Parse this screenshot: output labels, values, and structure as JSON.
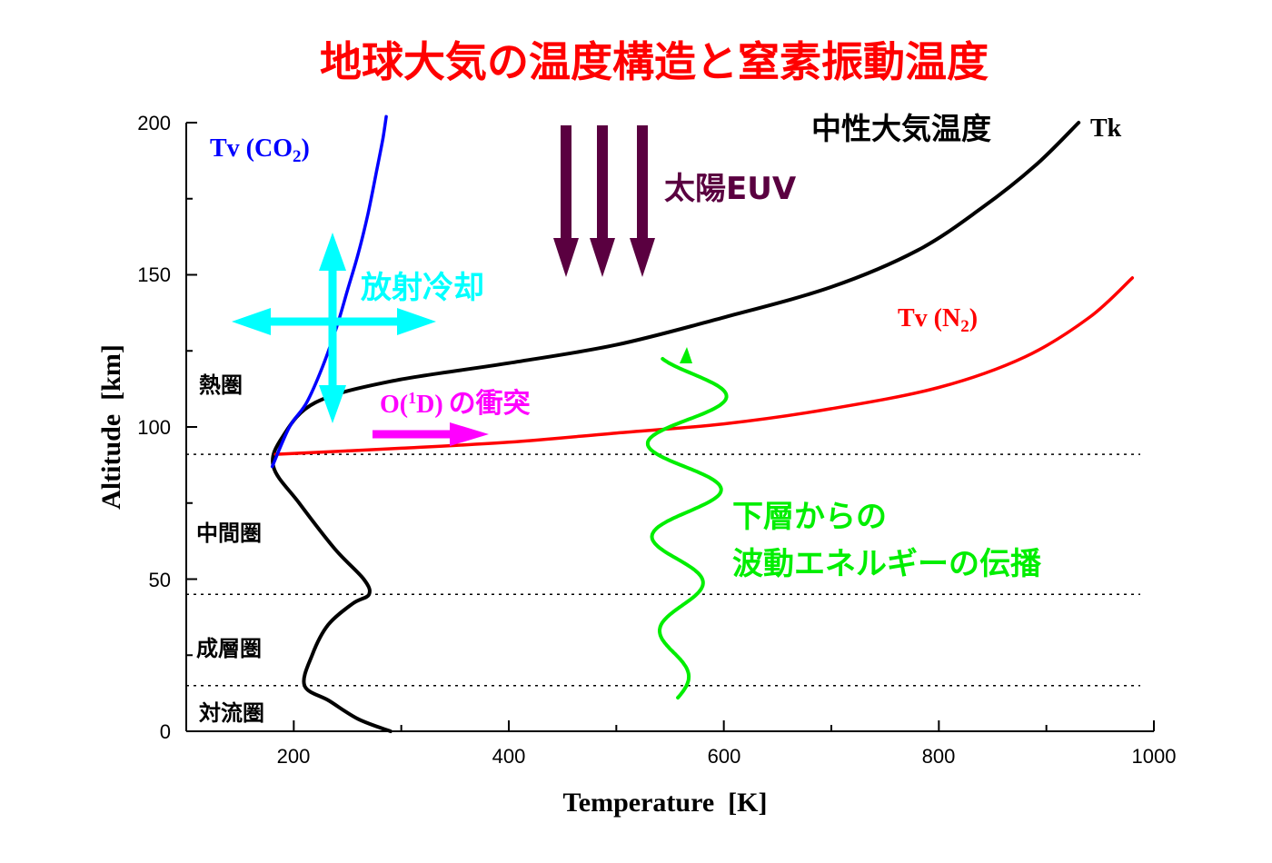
{
  "chart_data": {
    "type": "line",
    "title": "地球大気の温度構造と窒素振動温度",
    "xlabel": "Temperature  [K]",
    "ylabel": "Altitude  [km]",
    "xlim": [
      100,
      1000
    ],
    "ylim": [
      0,
      200
    ],
    "x_ticks": [
      "200",
      "400",
      "600",
      "800",
      "1000"
    ],
    "y_ticks": [
      "0",
      "50",
      "100",
      "150",
      "200"
    ],
    "series": [
      {
        "name": "Tk",
        "color": "#000000",
        "points": [
          [
            290,
            0
          ],
          [
            260,
            4
          ],
          [
            233,
            10
          ],
          [
            210,
            15
          ],
          [
            217,
            25
          ],
          [
            232,
            35
          ],
          [
            255,
            42
          ],
          [
            270,
            45
          ],
          [
            265,
            50
          ],
          [
            238,
            60
          ],
          [
            205,
            75
          ],
          [
            181,
            87
          ],
          [
            190,
            97
          ],
          [
            220,
            108
          ],
          [
            290,
            115
          ],
          [
            400,
            121
          ],
          [
            500,
            127
          ],
          [
            600,
            136
          ],
          [
            700,
            146
          ],
          [
            780,
            158
          ],
          [
            840,
            172
          ],
          [
            890,
            186
          ],
          [
            930,
            200
          ]
        ]
      },
      {
        "name": "Tv (N2)",
        "color": "#ff0000",
        "points": [
          [
            183,
            91
          ],
          [
            300,
            93
          ],
          [
            400,
            95
          ],
          [
            500,
            98
          ],
          [
            600,
            101
          ],
          [
            700,
            106
          ],
          [
            800,
            113
          ],
          [
            880,
            123
          ],
          [
            940,
            136
          ],
          [
            980,
            149
          ]
        ]
      },
      {
        "name": "Tv (CO2)",
        "color": "#0000ff",
        "points": [
          [
            180,
            87
          ],
          [
            196,
            100
          ],
          [
            212,
            108
          ],
          [
            227,
            120
          ],
          [
            240,
            133
          ],
          [
            250,
            145
          ],
          [
            260,
            157
          ],
          [
            269,
            170
          ],
          [
            277,
            184
          ],
          [
            283,
            195
          ],
          [
            286,
            202
          ]
        ]
      }
    ],
    "series_labels": {
      "tk": "Tk",
      "tv_co2": "Tv (CO",
      "tv_co2_sub": "2",
      "tv_co2_close": ")",
      "tv_n2": "Tv (N",
      "tv_n2_sub": "2",
      "tv_n2_close": ")"
    },
    "dotted_lines_km": [
      91,
      45,
      15
    ],
    "region_labels": [
      "熱圏",
      "中間圏",
      "成層圏",
      "対流圏"
    ],
    "annotations": {
      "neutral_temp": "中性大気温度",
      "solar_euv": "太陽EUV",
      "radiative_cooling": "放射冷却",
      "collision_prefix": "O(",
      "collision_sup": "1",
      "collision_mid": "D)",
      "collision_suffix": "の衝突",
      "wave_line1": "下層からの",
      "wave_line2": "波動エネルギーの伝播"
    },
    "colors": {
      "title": "#ff0000",
      "tk": "#000000",
      "tv_n2": "#ff0000",
      "tv_co2": "#0000ff",
      "euv": "#5a0040",
      "cooling": "#00ffff",
      "collision": "#ff00ff",
      "wave": "#00ee00"
    }
  }
}
